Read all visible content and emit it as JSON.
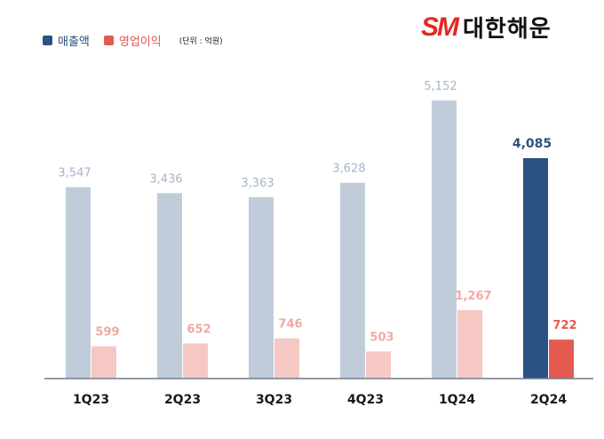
{
  "legend": {
    "revenue": "매출액",
    "operating_profit": "영업이익",
    "unit": "(단위 : 억원)"
  },
  "logo": {
    "mark": "SM",
    "name": "대한해운"
  },
  "colors": {
    "revenue": "#c0ccda",
    "revenue_highlight": "#2b5283",
    "profit": "#f6c8c4",
    "profit_highlight": "#e45a4f",
    "revenue_label": "#a4b5cb",
    "profit_label": "#f2a9a3"
  },
  "chart_data": {
    "type": "bar",
    "categories": [
      "1Q23",
      "2Q23",
      "3Q23",
      "4Q23",
      "1Q24",
      "2Q24"
    ],
    "series": [
      {
        "name": "매출액",
        "values": [
          3547,
          3436,
          3363,
          3628,
          5152,
          4085
        ],
        "labels": [
          "3,547",
          "3,436",
          "3,363",
          "3,628",
          "5,152",
          "4,085"
        ]
      },
      {
        "name": "영업이익",
        "values": [
          599,
          652,
          746,
          503,
          1267,
          722
        ],
        "labels": [
          "599",
          "652",
          "746",
          "503",
          "1,267",
          "722"
        ]
      }
    ],
    "highlight_index": 5,
    "ylim": [
      0,
      5600
    ],
    "grid": false
  }
}
